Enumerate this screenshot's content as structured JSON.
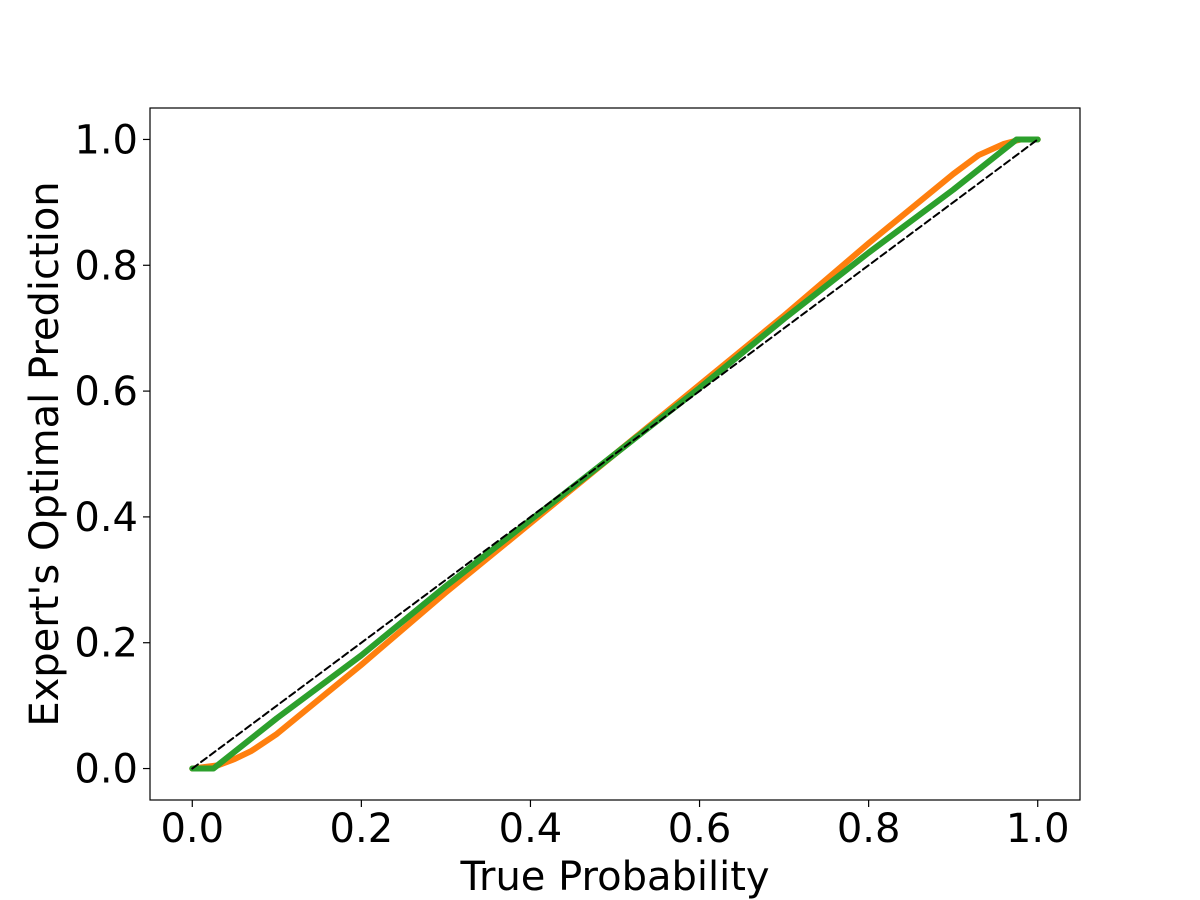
{
  "chart_data": {
    "type": "line",
    "title": "",
    "xlabel": "True Probability",
    "ylabel": "Expert's Optimal Prediction",
    "xlim": [
      -0.05,
      1.05
    ],
    "ylim": [
      -0.05,
      1.05
    ],
    "xticks": [
      0.0,
      0.2,
      0.4,
      0.6,
      0.8,
      1.0
    ],
    "yticks": [
      0.0,
      0.2,
      0.4,
      0.6,
      0.8,
      1.0
    ],
    "xtick_labels": [
      "0.0",
      "0.2",
      "0.4",
      "0.6",
      "0.8",
      "1.0"
    ],
    "ytick_labels": [
      "0.0",
      "0.2",
      "0.4",
      "0.6",
      "0.8",
      "1.0"
    ],
    "grid": false,
    "series": [
      {
        "color": "#ff7f0e",
        "style": "solid",
        "x": [
          0.0,
          0.03,
          0.05,
          0.07,
          0.1,
          0.15,
          0.2,
          0.3,
          0.4,
          0.5,
          0.6,
          0.7,
          0.8,
          0.85,
          0.9,
          0.93,
          0.96,
          0.98,
          1.0
        ],
        "y": [
          0.0,
          0.005,
          0.015,
          0.028,
          0.055,
          0.11,
          0.165,
          0.28,
          0.39,
          0.5,
          0.61,
          0.72,
          0.835,
          0.89,
          0.945,
          0.975,
          0.993,
          1.0,
          1.0
        ]
      },
      {
        "color": "#2ca02c",
        "style": "solid",
        "x": [
          0.0,
          0.025,
          0.1,
          0.2,
          0.3,
          0.4,
          0.5,
          0.6,
          0.7,
          0.8,
          0.9,
          0.975,
          1.0
        ],
        "y": [
          0.0,
          0.0,
          0.08,
          0.18,
          0.29,
          0.395,
          0.5,
          0.605,
          0.715,
          0.82,
          0.92,
          1.0,
          1.0
        ]
      },
      {
        "color": "#000000",
        "style": "dashed",
        "x": [
          0.0,
          1.0
        ],
        "y": [
          0.0,
          1.0
        ]
      }
    ]
  }
}
